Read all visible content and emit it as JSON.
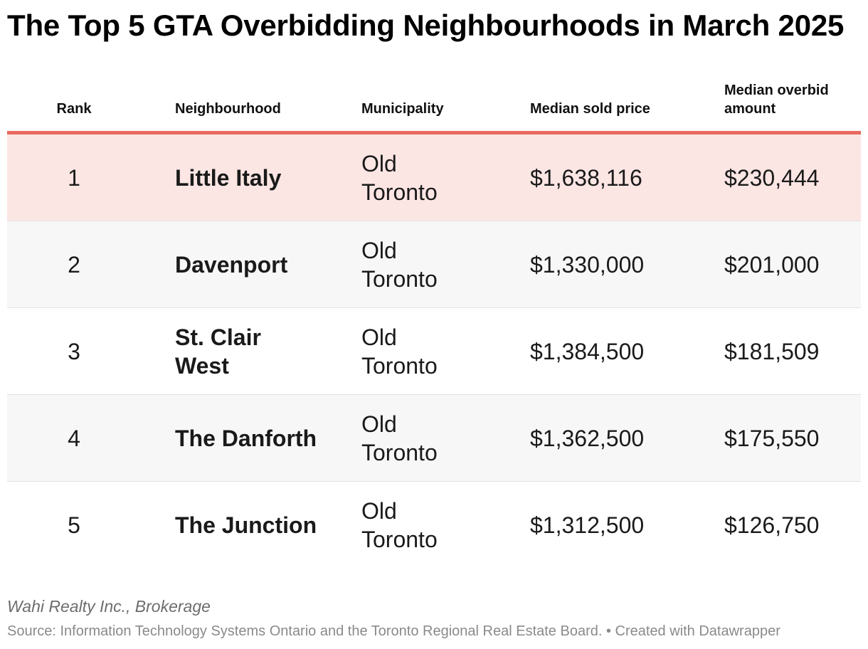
{
  "chart_data": {
    "type": "table",
    "title": "The Top 5 GTA Overbidding Neighbourhoods in March 2025",
    "columns": [
      "Rank",
      "Neighbourhood",
      "Municipality",
      "Median sold price",
      "Median overbid amount"
    ],
    "rows": [
      {
        "rank": "1",
        "neighbourhood": "Little Italy",
        "municipality": "Old Toronto",
        "median_sold_price": "$1,638,116",
        "median_overbid_amount": "$230,444",
        "highlighted": true
      },
      {
        "rank": "2",
        "neighbourhood": "Davenport",
        "municipality": "Old Toronto",
        "median_sold_price": "$1,330,000",
        "median_overbid_amount": "$201,000"
      },
      {
        "rank": "3",
        "neighbourhood": "St. Clair West",
        "municipality": "Old Toronto",
        "median_sold_price": "$1,384,500",
        "median_overbid_amount": "$181,509"
      },
      {
        "rank": "4",
        "neighbourhood": "The Danforth",
        "municipality": "Old Toronto",
        "median_sold_price": "$1,362,500",
        "median_overbid_amount": "$175,550"
      },
      {
        "rank": "5",
        "neighbourhood": "The Junction",
        "municipality": "Old Toronto",
        "median_sold_price": "$1,312,500",
        "median_overbid_amount": "$126,750"
      }
    ],
    "colors": {
      "header_rule": "#e8695f",
      "highlight_row": "#fce6e4",
      "alt_row": "#f7f7f7"
    }
  },
  "footer": {
    "organization": "Wahi Realty Inc., Brokerage",
    "source": "Source: Information Technology Systems Ontario and the Toronto Regional Real Estate Board. • Created with Datawrapper"
  }
}
